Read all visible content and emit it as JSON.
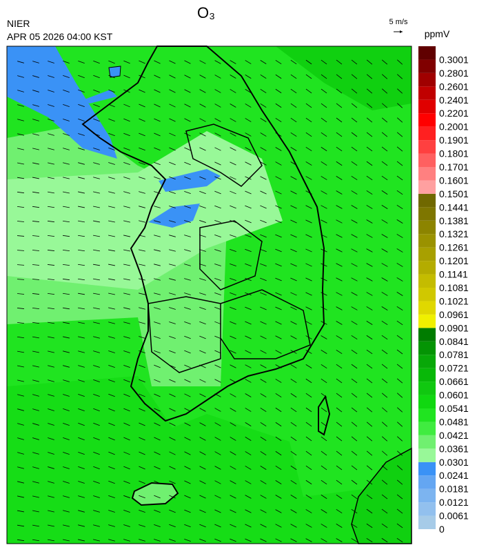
{
  "header": {
    "title": "O₃",
    "source": "NIER",
    "datetime": "APR 05 2026 04:00 KST",
    "wind_scale": "5 m/s"
  },
  "legend": {
    "unit": "ppmV",
    "levels": [
      {
        "value": 0,
        "color": "#a6cbe8"
      },
      {
        "value": 0.0061,
        "color": "#92c0ee"
      },
      {
        "value": 0.0121,
        "color": "#7cb4f0"
      },
      {
        "value": 0.0181,
        "color": "#64a6f2"
      },
      {
        "value": 0.0241,
        "color": "#3a92f6"
      },
      {
        "value": 0.0301,
        "color": "#98f898"
      },
      {
        "value": 0.0361,
        "color": "#70f070"
      },
      {
        "value": 0.0421,
        "color": "#40ec40"
      },
      {
        "value": 0.0481,
        "color": "#20e420"
      },
      {
        "value": 0.0541,
        "color": "#10d810"
      },
      {
        "value": 0.0601,
        "color": "#10c810"
      },
      {
        "value": 0.0661,
        "color": "#08b808"
      },
      {
        "value": 0.0721,
        "color": "#08a808"
      },
      {
        "value": 0.0781,
        "color": "#049404"
      },
      {
        "value": 0.0841,
        "color": "#007c00"
      },
      {
        "value": 0.0901,
        "color": "#f0f000"
      },
      {
        "value": 0.0961,
        "color": "#e0d800"
      },
      {
        "value": 0.1021,
        "color": "#d0c800"
      },
      {
        "value": 0.1081,
        "color": "#c4bc00"
      },
      {
        "value": 0.1141,
        "color": "#b4ac00"
      },
      {
        "value": 0.1201,
        "color": "#a8a000"
      },
      {
        "value": 0.1261,
        "color": "#9a9200"
      },
      {
        "value": 0.1321,
        "color": "#8c8400"
      },
      {
        "value": 0.1381,
        "color": "#7e7600"
      },
      {
        "value": 0.1441,
        "color": "#706800"
      },
      {
        "value": 0.1501,
        "color": "#ffa0a0"
      },
      {
        "value": 0.1601,
        "color": "#ff8080"
      },
      {
        "value": 0.1701,
        "color": "#ff6060"
      },
      {
        "value": 0.1801,
        "color": "#ff4040"
      },
      {
        "value": 0.1901,
        "color": "#ff2020"
      },
      {
        "value": 0.2001,
        "color": "#ff0000"
      },
      {
        "value": 0.2201,
        "color": "#e00000"
      },
      {
        "value": 0.2401,
        "color": "#c00000"
      },
      {
        "value": 0.2601,
        "color": "#a00000"
      },
      {
        "value": 0.2801,
        "color": "#800000"
      },
      {
        "value": 0.3001,
        "color": "#600000"
      }
    ]
  }
}
